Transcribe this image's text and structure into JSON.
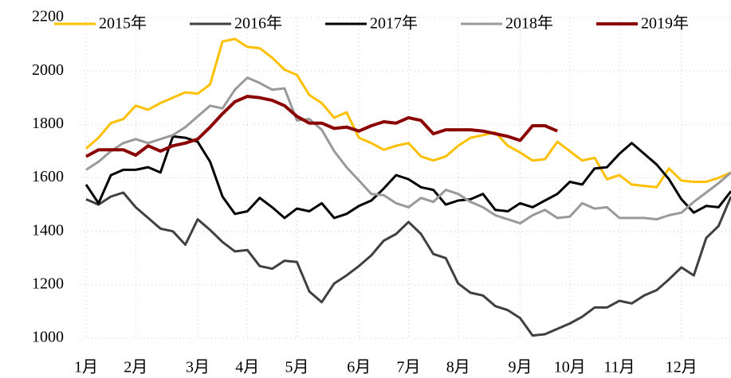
{
  "chart_data": {
    "type": "line",
    "categories": [
      "1月",
      null,
      null,
      null,
      "2月",
      null,
      null,
      null,
      null,
      "3月",
      null,
      null,
      null,
      "4月",
      null,
      null,
      null,
      "5月",
      null,
      null,
      null,
      null,
      "6月",
      null,
      null,
      null,
      "7月",
      null,
      null,
      null,
      "8月",
      null,
      null,
      null,
      null,
      "9月",
      null,
      null,
      null,
      "10月",
      null,
      null,
      null,
      "11月",
      null,
      null,
      null,
      null,
      "12月",
      null,
      null,
      null,
      null
    ],
    "series": [
      {
        "name": "2015年",
        "color": "#ffc000",
        "values": [
          1710,
          1750,
          1805,
          1820,
          1870,
          1855,
          1880,
          1900,
          1920,
          1915,
          1950,
          2110,
          2120,
          2090,
          2085,
          2050,
          2005,
          1985,
          1910,
          1880,
          1825,
          1845,
          1750,
          1730,
          1705,
          1720,
          1730,
          1680,
          1665,
          1680,
          1720,
          1750,
          1760,
          1770,
          1720,
          1695,
          1665,
          1670,
          1735,
          1700,
          1665,
          1675,
          1595,
          1610,
          1575,
          1570,
          1565,
          1635,
          1590,
          1585,
          1585,
          1600,
          1620
        ]
      },
      {
        "name": "2016年",
        "color": "#404040",
        "values": [
          1520,
          1500,
          1530,
          1545,
          1490,
          1450,
          1410,
          1400,
          1350,
          1445,
          1405,
          1360,
          1325,
          1330,
          1270,
          1260,
          1290,
          1285,
          1175,
          1135,
          1205,
          1235,
          1270,
          1310,
          1365,
          1390,
          1435,
          1390,
          1315,
          1300,
          1205,
          1170,
          1160,
          1120,
          1105,
          1075,
          1010,
          1015,
          1035,
          1055,
          1080,
          1115,
          1115,
          1140,
          1130,
          1160,
          1180,
          1220,
          1265,
          1235,
          1375,
          1420,
          1530
        ]
      },
      {
        "name": "2017年",
        "color": "#000000",
        "values": [
          1575,
          1505,
          1610,
          1630,
          1630,
          1640,
          1620,
          1755,
          1750,
          1735,
          1660,
          1530,
          1465,
          1475,
          1525,
          1490,
          1450,
          1485,
          1475,
          1505,
          1450,
          1465,
          1495,
          1515,
          1560,
          1610,
          1595,
          1565,
          1555,
          1500,
          1515,
          1520,
          1540,
          1480,
          1475,
          1505,
          1490,
          1515,
          1540,
          1585,
          1575,
          1635,
          1640,
          1690,
          1730,
          1690,
          1650,
          1595,
          1520,
          1470,
          1495,
          1490,
          1550
        ]
      },
      {
        "name": "2018年",
        "color": "#999999",
        "values": [
          1630,
          1660,
          1700,
          1730,
          1745,
          1730,
          1745,
          1760,
          1790,
          1830,
          1870,
          1860,
          1930,
          1975,
          1955,
          1930,
          1935,
          1815,
          1820,
          1780,
          1700,
          1640,
          1590,
          1540,
          1535,
          1505,
          1490,
          1525,
          1510,
          1555,
          1540,
          1510,
          1490,
          1460,
          1445,
          1430,
          1460,
          1480,
          1450,
          1455,
          1505,
          1485,
          1490,
          1450,
          1450,
          1450,
          1445,
          1460,
          1470,
          1510,
          1545,
          1580,
          1620
        ]
      },
      {
        "name": "2019年",
        "color": "#8b0000",
        "values": [
          1680,
          1705,
          1705,
          1705,
          1685,
          1720,
          1700,
          1720,
          1730,
          1745,
          1790,
          1840,
          1885,
          1905,
          1900,
          1890,
          1870,
          1830,
          1805,
          1805,
          1785,
          1790,
          1775,
          1795,
          1810,
          1805,
          1825,
          1815,
          1765,
          1780,
          1780,
          1780,
          1775,
          1765,
          1755,
          1740,
          1795,
          1795,
          1775,
          null,
          null,
          null,
          null,
          null,
          null,
          null,
          null,
          null,
          null,
          null,
          null,
          null,
          null
        ]
      }
    ],
    "ylim": [
      1000,
      2200
    ],
    "yticks": [
      1000,
      1200,
      1400,
      1600,
      1800,
      2000,
      2200
    ],
    "grid": true,
    "legend": "top"
  }
}
